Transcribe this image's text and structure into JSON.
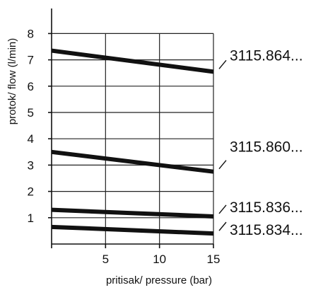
{
  "chart_data": {
    "type": "line",
    "xlabel": "pritisak/ pressure (bar)",
    "ylabel": "protok/ flow (l/min)",
    "xlim": [
      0,
      15
    ],
    "ylim": [
      0,
      8.7
    ],
    "x_ticks": [
      5,
      10,
      15
    ],
    "y_ticks": [
      1,
      2,
      3,
      4,
      5,
      6,
      7,
      8
    ],
    "grid": true,
    "x": [
      0,
      15
    ],
    "series": [
      {
        "name": "3115.864...",
        "values": [
          7.35,
          6.55
        ]
      },
      {
        "name": "3115.860...",
        "values": [
          3.5,
          2.75
        ]
      },
      {
        "name": "3115.836...",
        "values": [
          1.3,
          1.05
        ]
      },
      {
        "name": "3115.834...",
        "values": [
          0.65,
          0.4
        ]
      }
    ]
  }
}
